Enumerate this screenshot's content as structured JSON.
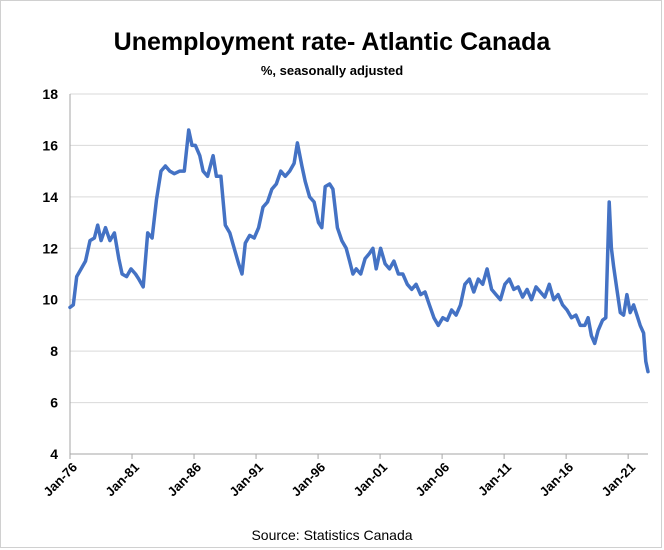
{
  "chart_data": {
    "type": "line",
    "title": "Unemployment rate- Atlantic Canada",
    "subtitle": "%, seasonally adjusted",
    "source": "Source: Statistics Canada",
    "xlabel": "",
    "ylabel": "",
    "ylim": [
      4,
      18
    ],
    "yticks": [
      4,
      6,
      8,
      10,
      12,
      14,
      16,
      18
    ],
    "yticks_labels": [
      "4",
      "6",
      "8",
      "10",
      "12",
      "14",
      "16",
      "18"
    ],
    "xtick_labels": [
      "Jan-76",
      "Jan-81",
      "Jan-86",
      "Jan-91",
      "Jan-96",
      "Jan-01",
      "Jan-06",
      "Jan-11",
      "Jan-16",
      "Jan-21"
    ],
    "xtick_years": [
      1976,
      1981,
      1986,
      1991,
      1996,
      2001,
      2006,
      2011,
      2016,
      2021
    ],
    "xlim_years": [
      1976,
      2022.6
    ],
    "grid": "horizontal",
    "legend": "none",
    "line_color": "#4472c4",
    "series": [
      {
        "points": [
          [
            1976.0,
            9.7
          ],
          [
            1976.3,
            9.8
          ],
          [
            1976.6,
            10.9
          ],
          [
            1977.0,
            11.2
          ],
          [
            1977.4,
            11.5
          ],
          [
            1977.8,
            12.3
          ],
          [
            1978.2,
            12.4
          ],
          [
            1978.5,
            12.9
          ],
          [
            1978.8,
            12.3
          ],
          [
            1979.2,
            12.8
          ],
          [
            1979.6,
            12.3
          ],
          [
            1980.0,
            12.6
          ],
          [
            1980.4,
            11.6
          ],
          [
            1980.7,
            11.0
          ],
          [
            1981.1,
            10.9
          ],
          [
            1981.5,
            11.2
          ],
          [
            1981.9,
            11.0
          ],
          [
            1982.2,
            10.8
          ],
          [
            1982.6,
            10.5
          ],
          [
            1983.0,
            12.6
          ],
          [
            1983.4,
            12.4
          ],
          [
            1983.8,
            13.9
          ],
          [
            1984.2,
            15.0
          ],
          [
            1984.6,
            15.2
          ],
          [
            1985.0,
            15.0
          ],
          [
            1985.4,
            14.9
          ],
          [
            1985.9,
            15.0
          ],
          [
            1986.3,
            15.0
          ],
          [
            1986.7,
            16.6
          ],
          [
            1987.0,
            16.0
          ],
          [
            1987.3,
            16.0
          ],
          [
            1987.7,
            15.6
          ],
          [
            1988.0,
            15.0
          ],
          [
            1988.4,
            14.8
          ],
          [
            1988.9,
            15.6
          ],
          [
            1989.2,
            14.8
          ],
          [
            1989.6,
            14.8
          ],
          [
            1990.0,
            12.9
          ],
          [
            1990.4,
            12.6
          ],
          [
            1990.8,
            12.0
          ],
          [
            1991.2,
            11.4
          ],
          [
            1991.5,
            11.0
          ],
          [
            1991.8,
            12.2
          ],
          [
            1992.2,
            12.5
          ],
          [
            1992.6,
            12.4
          ],
          [
            1993.0,
            12.8
          ],
          [
            1993.4,
            13.6
          ],
          [
            1993.8,
            13.8
          ],
          [
            1994.2,
            14.3
          ],
          [
            1994.6,
            14.5
          ],
          [
            1995.0,
            15.0
          ],
          [
            1995.4,
            14.8
          ],
          [
            1995.8,
            15.0
          ],
          [
            1996.2,
            15.3
          ],
          [
            1996.5,
            16.1
          ],
          [
            1996.9,
            15.2
          ],
          [
            1997.2,
            14.6
          ],
          [
            1997.6,
            14.0
          ],
          [
            1998.0,
            13.8
          ],
          [
            1998.4,
            13.0
          ],
          [
            1998.7,
            12.8
          ],
          [
            1999.0,
            14.4
          ],
          [
            1999.4,
            14.5
          ],
          [
            1999.7,
            14.3
          ],
          [
            2000.1,
            12.8
          ],
          [
            2000.5,
            12.3
          ],
          [
            2000.9,
            12.0
          ],
          [
            2001.2,
            11.5
          ],
          [
            2001.5,
            11.0
          ],
          [
            2001.8,
            11.2
          ],
          [
            2002.2,
            11.0
          ],
          [
            2002.6,
            11.6
          ],
          [
            2003.0,
            11.8
          ],
          [
            2003.3,
            12.0
          ],
          [
            2003.6,
            11.2
          ],
          [
            2004.0,
            12.0
          ],
          [
            2004.4,
            11.4
          ],
          [
            2004.8,
            11.2
          ],
          [
            2005.2,
            11.5
          ],
          [
            2005.6,
            11.0
          ],
          [
            2006.0,
            11.0
          ],
          [
            2006.4,
            10.6
          ],
          [
            2006.8,
            10.4
          ],
          [
            2007.2,
            10.6
          ],
          [
            2007.6,
            10.2
          ],
          [
            2008.0,
            10.3
          ],
          [
            2008.4,
            9.8
          ],
          [
            2008.8,
            9.3
          ],
          [
            2009.2,
            9.0
          ],
          [
            2009.6,
            9.3
          ],
          [
            2010.0,
            9.2
          ],
          [
            2010.4,
            9.6
          ],
          [
            2010.8,
            9.4
          ],
          [
            2011.2,
            9.8
          ],
          [
            2011.6,
            10.6
          ],
          [
            2012.0,
            10.8
          ],
          [
            2012.4,
            10.3
          ],
          [
            2012.8,
            10.8
          ],
          [
            2013.2,
            10.6
          ],
          [
            2013.6,
            11.2
          ],
          [
            2014.0,
            10.4
          ],
          [
            2014.4,
            10.2
          ],
          [
            2014.8,
            10.0
          ],
          [
            2015.2,
            10.6
          ],
          [
            2015.6,
            10.8
          ],
          [
            2016.0,
            10.4
          ],
          [
            2016.4,
            10.5
          ],
          [
            2016.8,
            10.1
          ],
          [
            2017.2,
            10.4
          ],
          [
            2017.6,
            10.0
          ],
          [
            2018.0,
            10.5
          ],
          [
            2018.4,
            10.3
          ],
          [
            2018.8,
            10.1
          ],
          [
            2019.2,
            10.6
          ],
          [
            2019.6,
            10.0
          ],
          [
            2020.0,
            10.2
          ],
          [
            2020.4,
            9.8
          ],
          [
            2020.8,
            9.6
          ],
          [
            2021.2,
            9.3
          ],
          [
            2021.6,
            9.4
          ],
          [
            2022.0,
            9.0
          ],
          [
            2022.4,
            9.0
          ],
          [
            2022.7,
            9.3
          ],
          [
            2023.0,
            8.6
          ],
          [
            2023.3,
            8.3
          ],
          [
            2023.6,
            8.8
          ],
          [
            2024.0,
            9.2
          ],
          [
            2024.3,
            9.3
          ],
          [
            2024.6,
            13.8
          ],
          [
            2024.8,
            12.0
          ],
          [
            2025.0,
            11.3
          ],
          [
            2025.3,
            10.4
          ],
          [
            2025.6,
            9.5
          ],
          [
            2025.9,
            9.4
          ],
          [
            2026.2,
            10.2
          ],
          [
            2026.5,
            9.5
          ],
          [
            2026.8,
            9.8
          ],
          [
            2027.1,
            9.4
          ],
          [
            2027.4,
            9.0
          ],
          [
            2027.7,
            8.7
          ],
          [
            2027.9,
            7.6
          ],
          [
            2028.1,
            7.2
          ]
        ]
      }
    ]
  }
}
